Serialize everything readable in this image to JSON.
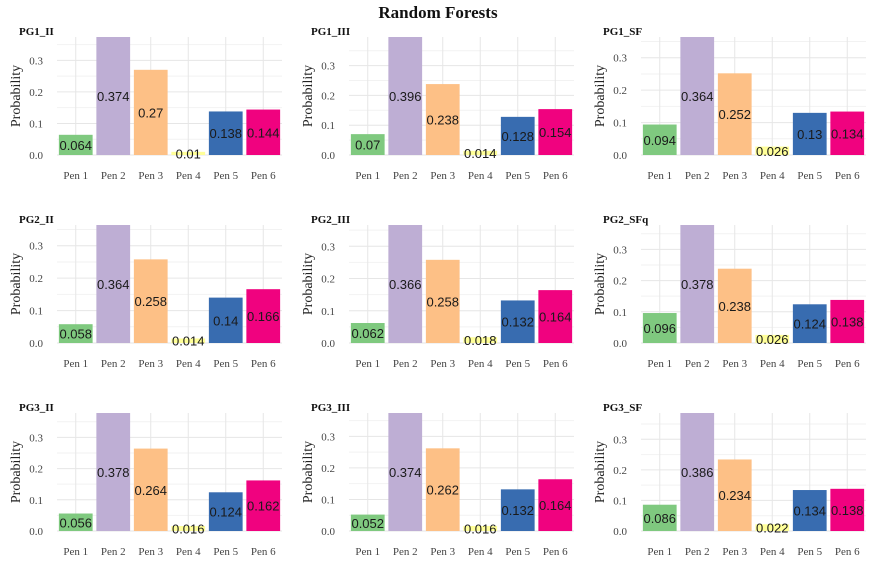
{
  "title": "Random Forests",
  "chart_data": [
    {
      "type": "bar",
      "title": "PG1_II",
      "ylabel": "Probability",
      "categories": [
        "Pen 1",
        "Pen 2",
        "Pen 3",
        "Pen 4",
        "Pen 5",
        "Pen 6"
      ],
      "values": [
        0.064,
        0.374,
        0.27,
        0.01,
        0.138,
        0.144
      ],
      "ylim": [
        0,
        0.374
      ],
      "yticks": [
        0.0,
        0.1,
        0.2,
        0.3
      ],
      "ytick_labels": [
        "0.0",
        "0.1",
        "0.2",
        "0.3"
      ]
    },
    {
      "type": "bar",
      "title": "PG1_III",
      "ylabel": "Probability",
      "categories": [
        "Pen 1",
        "Pen 2",
        "Pen 3",
        "Pen 4",
        "Pen 5",
        "Pen 6"
      ],
      "values": [
        0.07,
        0.396,
        0.238,
        0.014,
        0.128,
        0.154
      ],
      "ylim": [
        0,
        0.396
      ],
      "yticks": [
        0.0,
        0.1,
        0.2,
        0.3
      ],
      "ytick_labels": [
        "0.0",
        "0.1",
        "0.2",
        "0.3"
      ]
    },
    {
      "type": "bar",
      "title": "PG1_SF",
      "ylabel": "Probability",
      "categories": [
        "Pen 1",
        "Pen 2",
        "Pen 3",
        "Pen 4",
        "Pen 5",
        "Pen 6"
      ],
      "values": [
        0.094,
        0.364,
        0.252,
        0.026,
        0.13,
        0.134
      ],
      "ylim": [
        0,
        0.364
      ],
      "yticks": [
        0.0,
        0.1,
        0.2,
        0.3
      ],
      "ytick_labels": [
        "0.0",
        "0.1",
        "0.2",
        "0.3"
      ]
    },
    {
      "type": "bar",
      "title": "PG2_II",
      "ylabel": "Probability",
      "categories": [
        "Pen 1",
        "Pen 2",
        "Pen 3",
        "Pen 4",
        "Pen 5",
        "Pen 6"
      ],
      "values": [
        0.058,
        0.364,
        0.258,
        0.014,
        0.14,
        0.166
      ],
      "ylim": [
        0,
        0.364
      ],
      "yticks": [
        0.0,
        0.1,
        0.2,
        0.3
      ],
      "ytick_labels": [
        "0.0",
        "0.1",
        "0.2",
        "0.3"
      ]
    },
    {
      "type": "bar",
      "title": "PG2_III",
      "ylabel": "Probability",
      "categories": [
        "Pen 1",
        "Pen 2",
        "Pen 3",
        "Pen 4",
        "Pen 5",
        "Pen 6"
      ],
      "values": [
        0.062,
        0.366,
        0.258,
        0.018,
        0.132,
        0.164
      ],
      "ylim": [
        0,
        0.366
      ],
      "yticks": [
        0.0,
        0.1,
        0.2,
        0.3
      ],
      "ytick_labels": [
        "0.0",
        "0.1",
        "0.2",
        "0.3"
      ]
    },
    {
      "type": "bar",
      "title": "PG2_SFq",
      "ylabel": "Probability",
      "categories": [
        "Pen 1",
        "Pen 2",
        "Pen 3",
        "Pen 4",
        "Pen 5",
        "Pen 6"
      ],
      "values": [
        0.096,
        0.378,
        0.238,
        0.026,
        0.124,
        0.138
      ],
      "ylim": [
        0,
        0.378
      ],
      "yticks": [
        0.0,
        0.1,
        0.2,
        0.3
      ],
      "ytick_labels": [
        "0.0",
        "0.1",
        "0.2",
        "0.3"
      ]
    },
    {
      "type": "bar",
      "title": "PG3_II",
      "ylabel": "Probability",
      "categories": [
        "Pen 1",
        "Pen 2",
        "Pen 3",
        "Pen 4",
        "Pen 5",
        "Pen 6"
      ],
      "values": [
        0.056,
        0.378,
        0.264,
        0.016,
        0.124,
        0.162
      ],
      "ylim": [
        0,
        0.378
      ],
      "yticks": [
        0.0,
        0.1,
        0.2,
        0.3
      ],
      "ytick_labels": [
        "0.0",
        "0.1",
        "0.2",
        "0.3"
      ]
    },
    {
      "type": "bar",
      "title": "PG3_III",
      "ylabel": "Probability",
      "categories": [
        "Pen 1",
        "Pen 2",
        "Pen 3",
        "Pen 4",
        "Pen 5",
        "Pen 6"
      ],
      "values": [
        0.052,
        0.374,
        0.262,
        0.016,
        0.132,
        0.164
      ],
      "ylim": [
        0,
        0.374
      ],
      "yticks": [
        0.0,
        0.1,
        0.2,
        0.3
      ],
      "ytick_labels": [
        "0.0",
        "0.1",
        "0.2",
        "0.3"
      ]
    },
    {
      "type": "bar",
      "title": "PG3_SF",
      "ylabel": "Probability",
      "categories": [
        "Pen 1",
        "Pen 2",
        "Pen 3",
        "Pen 4",
        "Pen 5",
        "Pen 6"
      ],
      "values": [
        0.086,
        0.386,
        0.234,
        0.022,
        0.134,
        0.138
      ],
      "ylim": [
        0,
        0.386
      ],
      "yticks": [
        0.0,
        0.1,
        0.2,
        0.3
      ],
      "ytick_labels": [
        "0.0",
        "0.1",
        "0.2",
        "0.3"
      ]
    }
  ],
  "colors": [
    "#7fc97f",
    "#beaed4",
    "#fdc086",
    "#ffff99",
    "#386cb0",
    "#f0027f"
  ],
  "value_labels": [
    [
      "0.064",
      "0.374",
      "0.27",
      "0.01",
      "0.138",
      "0.144"
    ],
    [
      "0.07",
      "0.396",
      "0.238",
      "0.014",
      "0.128",
      "0.154"
    ],
    [
      "0.094",
      "0.364",
      "0.252",
      "0.026",
      "0.13",
      "0.134"
    ],
    [
      "0.058",
      "0.364",
      "0.258",
      "0.014",
      "0.14",
      "0.166"
    ],
    [
      "0.062",
      "0.366",
      "0.258",
      "0.018",
      "0.132",
      "0.164"
    ],
    [
      "0.096",
      "0.378",
      "0.238",
      "0.026",
      "0.124",
      "0.138"
    ],
    [
      "0.056",
      "0.378",
      "0.264",
      "0.016",
      "0.124",
      "0.162"
    ],
    [
      "0.052",
      "0.374",
      "0.262",
      "0.016",
      "0.132",
      "0.164"
    ],
    [
      "0.086",
      "0.386",
      "0.234",
      "0.022",
      "0.134",
      "0.138"
    ]
  ]
}
